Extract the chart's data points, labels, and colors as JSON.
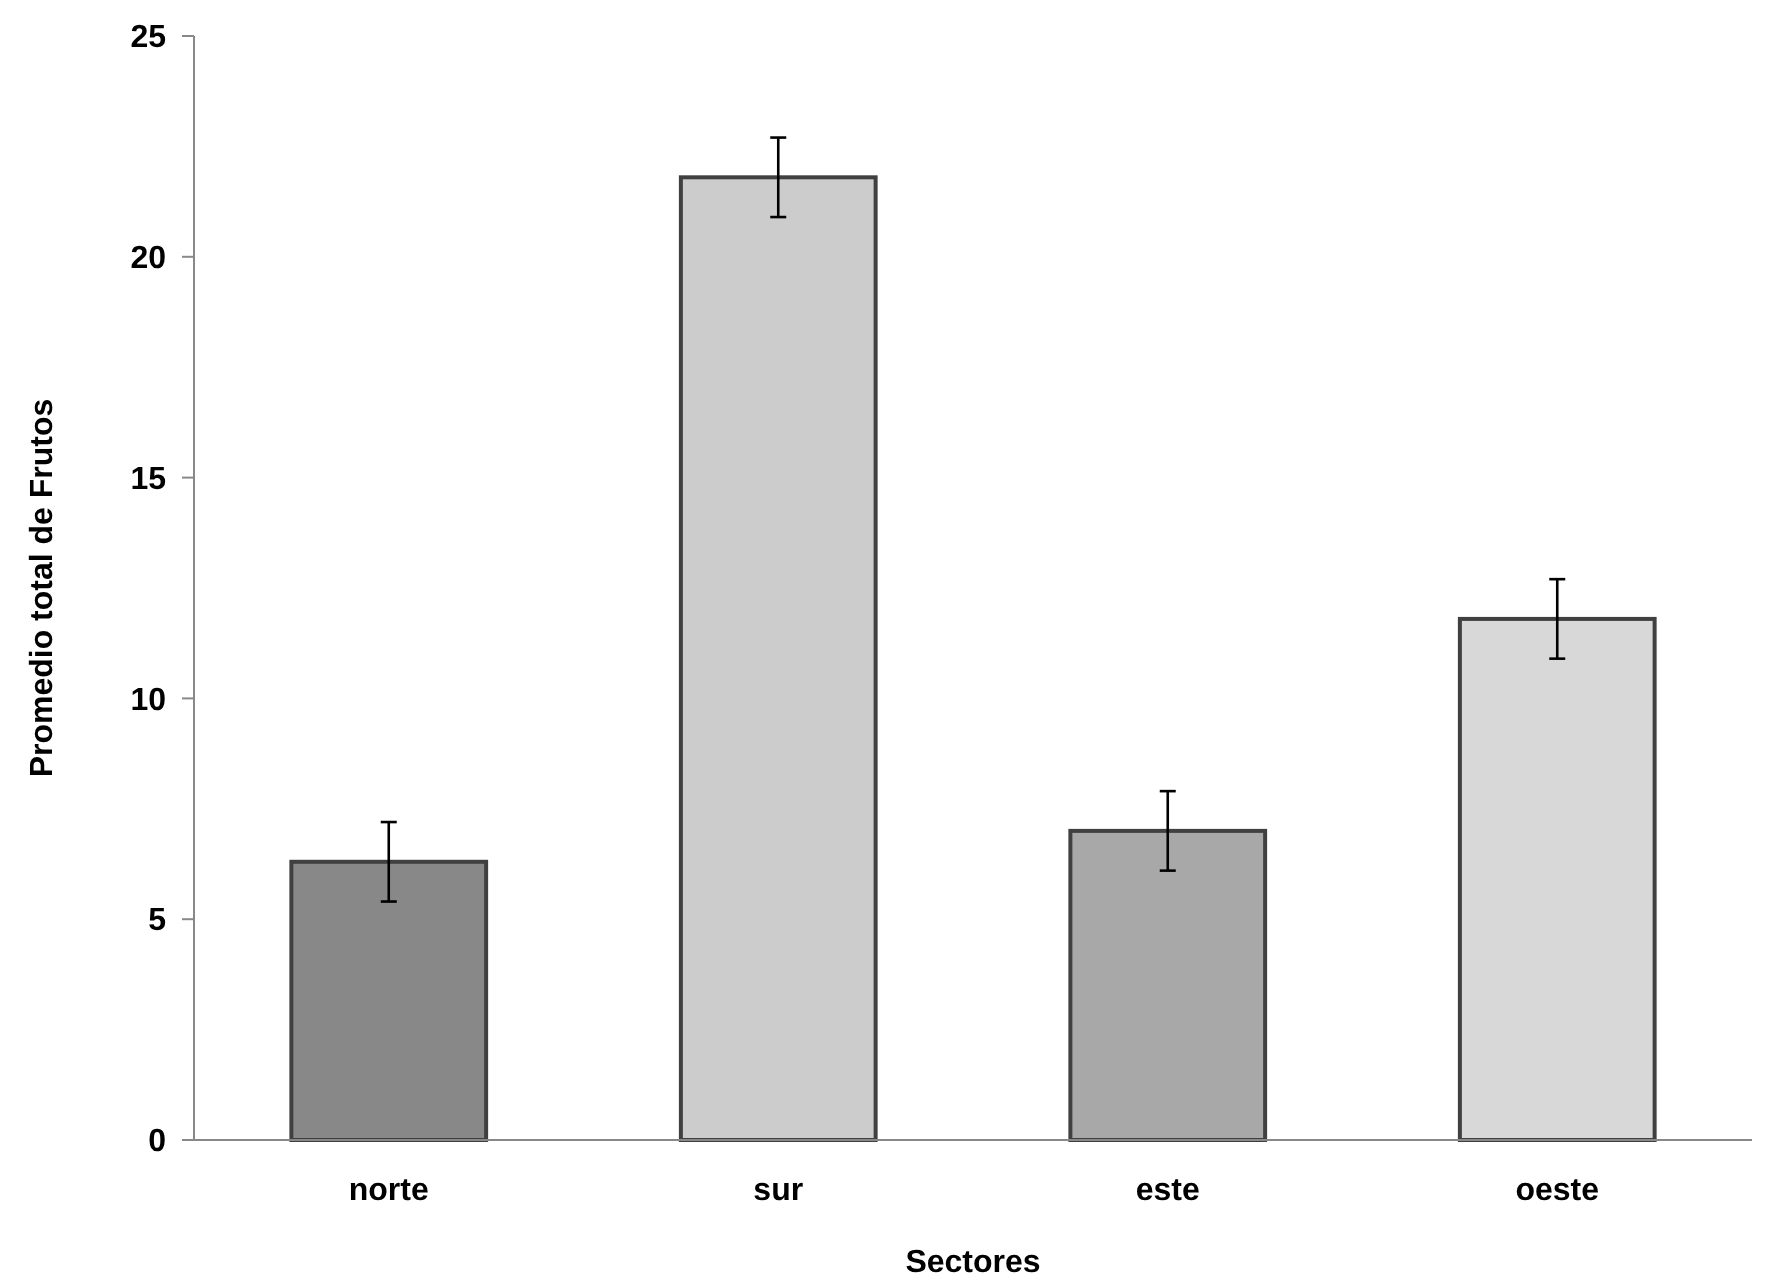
{
  "chart_data": {
    "type": "bar",
    "xlabel": "Sectores",
    "ylabel": "Promedio total de Frutos",
    "categories": [
      "norte",
      "sur",
      "este",
      "oeste"
    ],
    "values": [
      6.3,
      21.8,
      7.0,
      11.8
    ],
    "errors": [
      0.9,
      0.9,
      0.9,
      0.9
    ],
    "colors": [
      "#888888",
      "#cccccc",
      "#a8a8a8",
      "#d8d8d8"
    ],
    "ylim": [
      0,
      25
    ],
    "yticks": [
      0,
      5,
      10,
      15,
      20,
      25
    ],
    "grid": false
  }
}
